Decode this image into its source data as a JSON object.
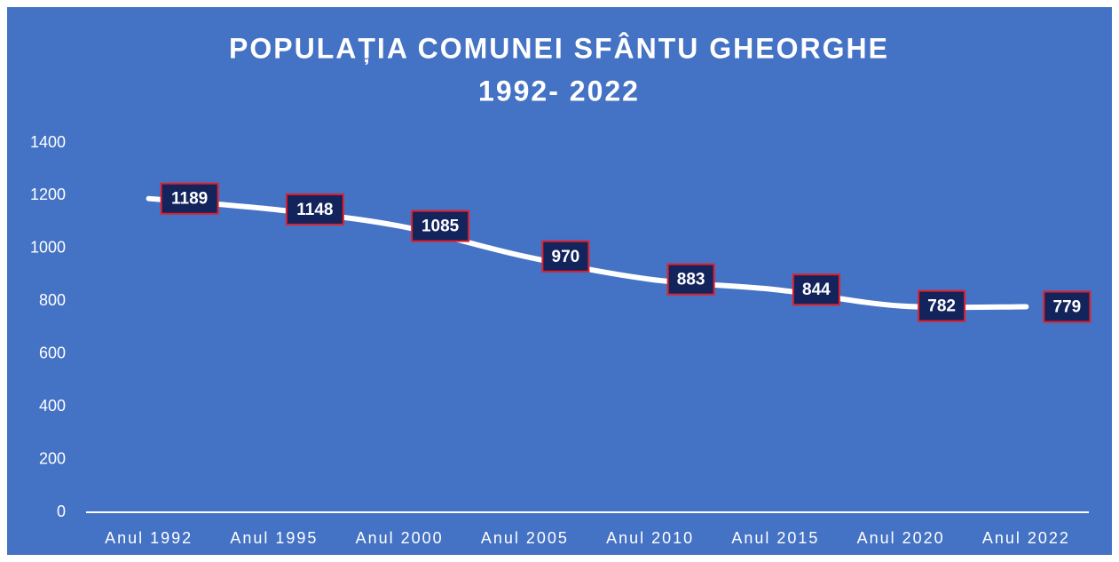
{
  "chart_data": {
    "type": "line",
    "title": "POPULAȚIA COMUNEI SFÂNTU GHEORGHE",
    "subtitle": "1992- 2022",
    "categories": [
      "Anul 1992",
      "Anul 1995",
      "Anul 2000",
      "Anul 2005",
      "Anul 2010",
      "Anul 2015",
      "Anul 2020",
      "Anul 2022"
    ],
    "values": [
      1189,
      1148,
      1085,
      970,
      883,
      844,
      782,
      779
    ],
    "color": "#ffffff",
    "label_fill": "#13235b",
    "label_border": "#e0202a",
    "background": "#4472c4",
    "ylim": [
      0,
      1400
    ],
    "yticks": [
      0,
      200,
      400,
      600,
      800,
      1000,
      1200,
      1400
    ],
    "grid": false,
    "drop_lines": true
  }
}
